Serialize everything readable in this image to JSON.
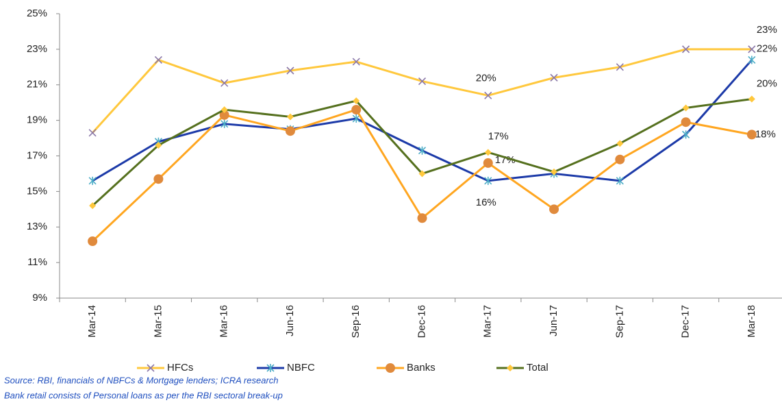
{
  "chart_data": {
    "type": "line",
    "categories": [
      "Mar-14",
      "Mar-15",
      "Mar-16",
      "Jun-16",
      "Sep-16",
      "Dec-16",
      "Mar-17",
      "Jun-17",
      "Sep-17",
      "Dec-17",
      "Mar-18"
    ],
    "ylim": [
      9,
      25
    ],
    "yticks": [
      {
        "value": 9,
        "label": "9%"
      },
      {
        "value": 11,
        "label": "11%"
      },
      {
        "value": 13,
        "label": "13%"
      },
      {
        "value": 15,
        "label": "15%"
      },
      {
        "value": 17,
        "label": "17%"
      },
      {
        "value": 19,
        "label": "19%"
      },
      {
        "value": 21,
        "label": "21%"
      },
      {
        "value": 23,
        "label": "23%"
      },
      {
        "value": 25,
        "label": "25%"
      }
    ],
    "grid": false,
    "legend": "bottom",
    "series": [
      {
        "name": "HFCs",
        "color": "#ffc83d",
        "marker": "x",
        "marker_color": "#8a77a8",
        "values": [
          18.3,
          22.4,
          21.1,
          21.8,
          22.3,
          21.2,
          20.4,
          21.4,
          22.0,
          23.0,
          23.0
        ],
        "value_labels": [
          null,
          null,
          null,
          null,
          null,
          null,
          "20%",
          null,
          null,
          null,
          "23%"
        ]
      },
      {
        "name": "NBFC",
        "color": "#1c3aa8",
        "marker": "star",
        "marker_color": "#4bacc6",
        "values": [
          15.6,
          17.8,
          18.8,
          18.5,
          19.1,
          17.3,
          15.6,
          16.0,
          15.6,
          18.2,
          22.4
        ],
        "value_labels": [
          null,
          null,
          null,
          null,
          null,
          null,
          "16%",
          null,
          null,
          null,
          "22%"
        ]
      },
      {
        "name": "Banks",
        "color": "#ffa620",
        "marker": "circle",
        "marker_color": "#e08a3c",
        "values": [
          12.2,
          15.7,
          19.3,
          18.4,
          19.6,
          13.5,
          16.6,
          14.0,
          16.8,
          18.9,
          18.2
        ],
        "value_labels": [
          null,
          null,
          null,
          null,
          null,
          null,
          "17%",
          null,
          null,
          null,
          "18%"
        ]
      },
      {
        "name": "Total",
        "color": "#55701e",
        "marker": "diamond",
        "marker_color": "#ffc83d",
        "values": [
          14.2,
          17.6,
          19.6,
          19.2,
          20.1,
          16.0,
          17.2,
          16.1,
          17.7,
          19.7,
          20.2
        ],
        "value_labels": [
          null,
          null,
          null,
          null,
          null,
          null,
          "17%",
          null,
          null,
          null,
          "20%"
        ]
      }
    ],
    "notes": [
      "Source: RBI, financials of NBFCs & Mortgage lenders; ICRA research",
      "Bank retail consists of Personal loans as per the RBI sectoral break-up"
    ]
  }
}
